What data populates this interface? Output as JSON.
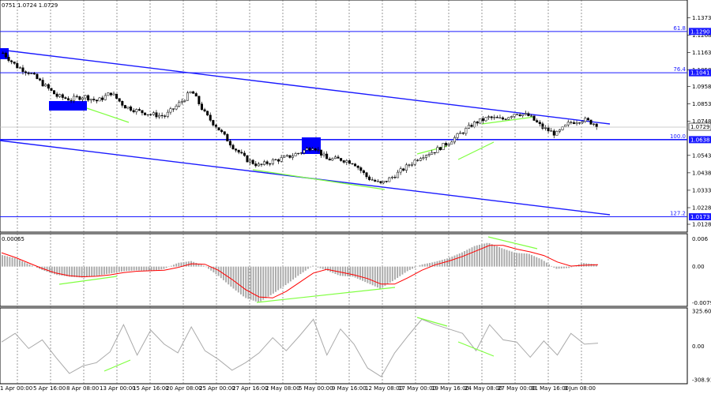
{
  "header": {
    "ohlc_text": "0751 1.0724 1.0729"
  },
  "chart_data": {
    "type": "candlestick",
    "main_panel": {
      "price_ticks": [
        "1.1373",
        "1.1268",
        "1.1163",
        "1.1058",
        "1.0958",
        "1.0853",
        "1.0748",
        "1.0543",
        "1.0438",
        "1.0333",
        "1.0228",
        "1.0128"
      ],
      "price_ticks_numeric": [
        1.1373,
        1.1268,
        1.1163,
        1.1058,
        1.0958,
        1.0853,
        1.0748,
        1.0543,
        1.0438,
        1.0333,
        1.0228,
        1.0128
      ],
      "ylim": [
        1.009,
        1.147
      ],
      "fib_levels": [
        {
          "label": "61.8",
          "price": 1.129,
          "tag": "1.1290"
        },
        {
          "label": "76.4",
          "price": 1.1041,
          "tag": "1.1041"
        },
        {
          "label": "100.0",
          "price": 1.0638,
          "tag": "1.0638"
        },
        {
          "label": "127.2",
          "price": 1.0173,
          "tag": "1.0173"
        }
      ],
      "current_price": {
        "price": 1.0729,
        "tag": "1.0729"
      },
      "close_path": [
        1.116,
        1.108,
        1.104,
        1.097,
        1.09,
        1.088,
        1.09,
        1.087,
        1.092,
        1.084,
        1.081,
        1.079,
        1.078,
        1.085,
        1.093,
        1.079,
        1.07,
        1.06,
        1.052,
        1.048,
        1.051,
        1.053,
        1.056,
        1.06,
        1.052,
        1.052,
        1.05,
        1.041,
        1.037,
        1.042,
        1.048,
        1.054,
        1.057,
        1.062,
        1.068,
        1.074,
        1.077,
        1.076,
        1.08,
        1.078,
        1.071,
        1.067,
        1.074,
        1.076,
        1.0729
      ]
    },
    "macd_panel": {
      "ticks": [
        "0.00065",
        "0.006",
        "0.00",
        "-0.00791"
      ],
      "ticks_numeric": [
        0.006,
        0.0,
        -0.00791
      ],
      "ylim": [
        -0.0083,
        0.0068
      ],
      "histogram": [
        0.0025,
        0.0018,
        0.0005,
        -0.0008,
        -0.0018,
        -0.0022,
        -0.0024,
        -0.002,
        -0.0015,
        -0.001,
        -0.0008,
        -0.001,
        -0.0005,
        0.0008,
        0.0012,
        0.0001,
        -0.002,
        -0.0045,
        -0.0068,
        -0.0078,
        -0.006,
        -0.004,
        -0.0018,
        0.0002,
        -0.0008,
        -0.002,
        -0.0022,
        -0.0035,
        -0.0048,
        -0.003,
        -0.001,
        0.0004,
        0.001,
        0.0018,
        0.003,
        0.0045,
        0.0052,
        0.004,
        0.003,
        0.0028,
        0.0015,
        -0.0005,
        -0.0003,
        0.0008,
        0.0005
      ],
      "signal": [
        0.003,
        0.002,
        0.0008,
        -0.0004,
        -0.0014,
        -0.002,
        -0.0022,
        -0.0021,
        -0.0018,
        -0.0013,
        -0.001,
        -0.0009,
        -0.0008,
        -0.0002,
        0.0006,
        0.0005,
        -0.0008,
        -0.0028,
        -0.005,
        -0.0066,
        -0.0068,
        -0.0054,
        -0.0034,
        -0.0014,
        -0.0006,
        -0.0012,
        -0.0018,
        -0.0026,
        -0.0038,
        -0.0038,
        -0.0024,
        -0.0008,
        0.0004,
        0.0012,
        0.0022,
        0.0034,
        0.0046,
        0.0046,
        0.0038,
        0.0032,
        0.0024,
        0.001,
        0.0001,
        0.0003,
        0.0004
      ]
    },
    "cci_panel": {
      "ticks": [
        "325.6034",
        "0.00",
        "-308.915"
      ],
      "ticks_numeric": [
        325.6034,
        0.0,
        -308.915
      ],
      "ylim": [
        -330,
        340
      ],
      "values": [
        40,
        120,
        -20,
        60,
        -100,
        -250,
        -180,
        -150,
        -50,
        200,
        -80,
        150,
        20,
        -60,
        180,
        -40,
        -120,
        -220,
        -150,
        -60,
        80,
        -40,
        100,
        250,
        -80,
        160,
        20,
        -200,
        -280,
        -60,
        100,
        250,
        200,
        160,
        120,
        -40,
        200,
        60,
        40,
        -100,
        50,
        -80,
        120,
        20,
        30
      ]
    },
    "x_labels": [
      "1 Apr 00:00",
      "5 Apr 16:00",
      "8 Apr 08:00",
      "13 Apr 00:00",
      "15 Apr 16:00",
      "20 Apr 08:00",
      "25 Apr 00:00",
      "27 Apr 16:00",
      "2 May 08:00",
      "5 May 00:00",
      "9 May 16:00",
      "12 May 08:00",
      "17 May 00:00",
      "19 May 16:00",
      "24 May 08:00",
      "27 May 00:00",
      "31 May 16:00",
      "3 Jun 08:00"
    ],
    "colors": {
      "channel": "#1a1aff",
      "fib": "#1a1aff",
      "divergence": "#7fff3f",
      "candles": "#000000",
      "macd_histogram": "#a9a9a9",
      "macd_signal": "#ff0000",
      "cci_line": "#a9a9a9",
      "grid": "#000000"
    }
  }
}
